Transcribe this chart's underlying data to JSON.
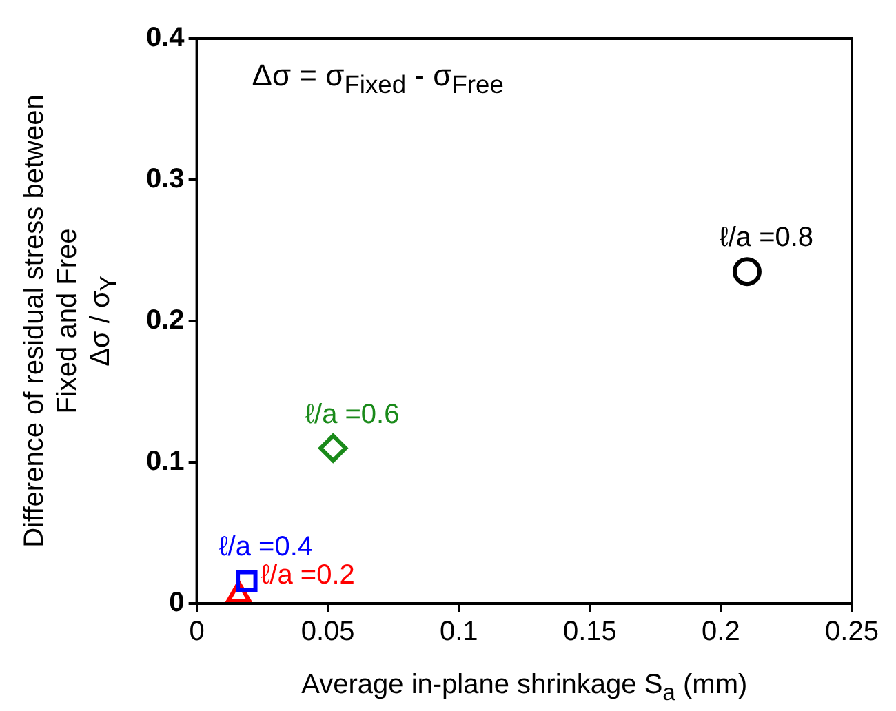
{
  "chart_data": {
    "type": "scatter",
    "xlabel": "Average in-plane shrinkage  S$_{a}$ (mm)",
    "ylabel": "Difference of residual stress between\nFixed and Free\nΔσ / σ$_{Y}$",
    "annotations": [
      "Δσ = σ$_{Fixed}$ - σ$_{Free}$"
    ],
    "series": [
      {
        "name": "ℓ/a =0.8",
        "color": "#000000",
        "marker": "circle",
        "x": [
          0.21
        ],
        "values": [
          0.235
        ]
      },
      {
        "name": "ℓ/a =0.6",
        "color": "#1a8a1a",
        "marker": "diamond",
        "x": [
          0.052
        ],
        "values": [
          0.11
        ]
      },
      {
        "name": "ℓ/a =0.4",
        "color": "#0000ff",
        "marker": "square",
        "x": [
          0.019
        ],
        "values": [
          0.016
        ]
      },
      {
        "name": "ℓ/a =0.2",
        "color": "#ff0000",
        "marker": "triangle",
        "x": [
          0.016
        ],
        "values": [
          0.006
        ]
      }
    ],
    "xlim": [
      0,
      0.25
    ],
    "xticks": [
      0,
      0.05,
      0.1,
      0.15,
      0.2,
      0.25
    ],
    "ylim": [
      0,
      0.4
    ],
    "yticks": [
      0,
      0.1,
      0.2,
      0.3,
      0.4
    ],
    "grid": false,
    "legend": false
  }
}
